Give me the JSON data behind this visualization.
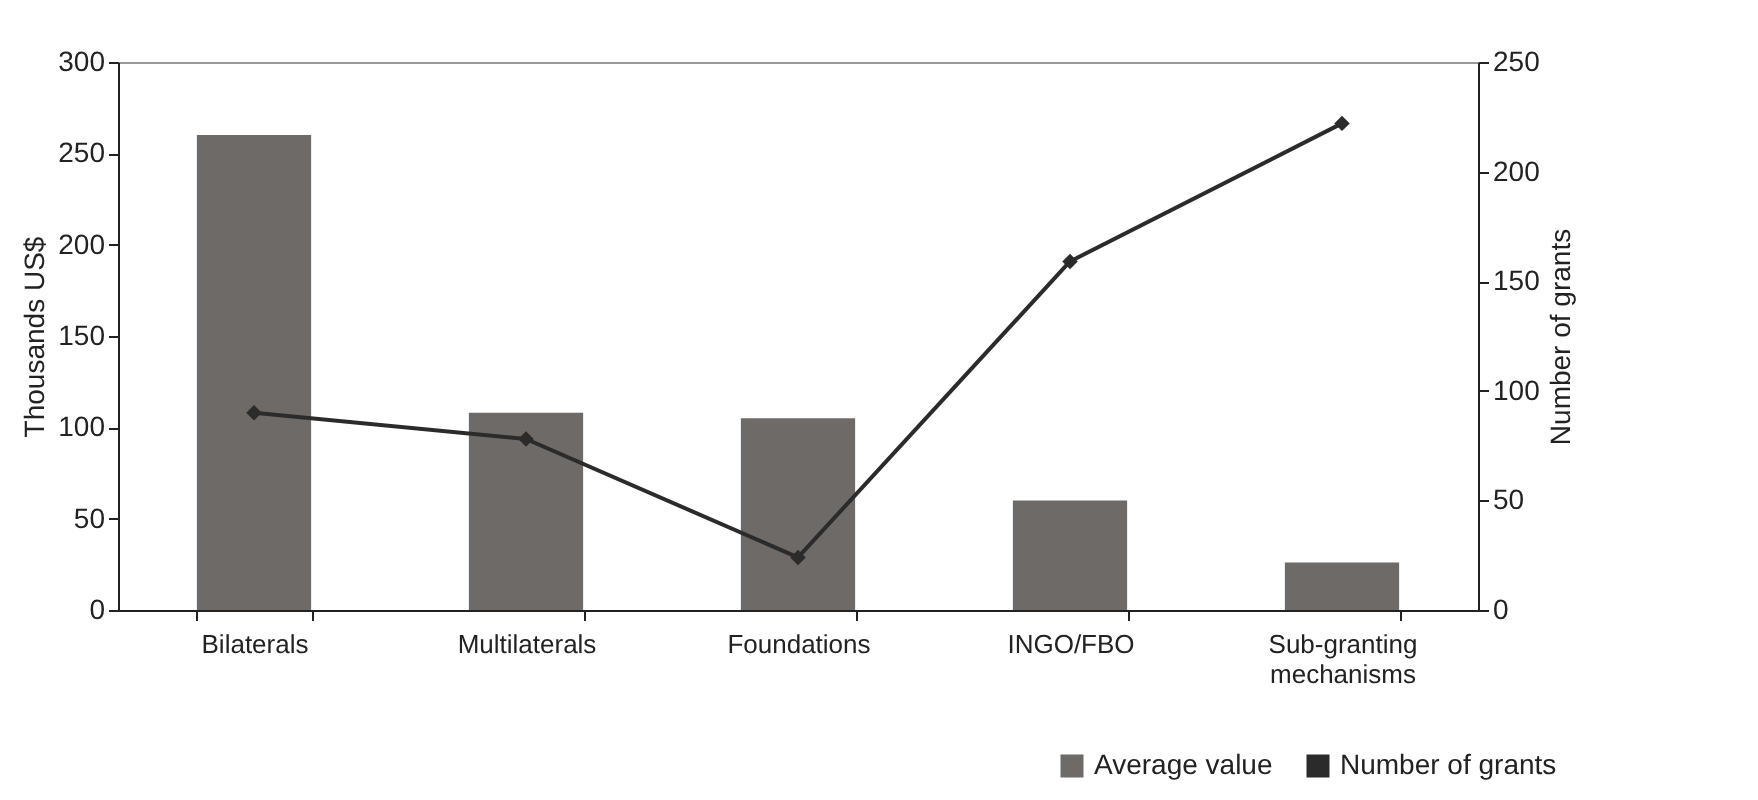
{
  "chart_data": {
    "type": "bar",
    "ylabel": "Thousands US$",
    "y2label": "Number of grants",
    "categories": [
      "Bilaterals",
      "Multilaterals",
      "Foundations",
      "INGO/FBO",
      "Sub-granting mechanisms"
    ],
    "series": [
      {
        "name": "Average value",
        "color": "#6e6a68",
        "values": [
          260,
          108,
          105,
          60,
          26
        ]
      },
      {
        "name": "Number of grants",
        "type": "line",
        "axis": "y2",
        "color": "#2b2b2b",
        "marker": "diamond",
        "line_style": "solid",
        "values": [
          90,
          78,
          24,
          159,
          222
        ]
      }
    ],
    "ylim": [
      0,
      300
    ],
    "yticks": [
      0,
      50,
      100,
      150,
      200,
      250,
      300
    ],
    "y2lim": [
      0,
      250
    ],
    "y2ticks": [
      0,
      50,
      100,
      150,
      200,
      250
    ],
    "grid": false,
    "legend": "bottom right"
  }
}
